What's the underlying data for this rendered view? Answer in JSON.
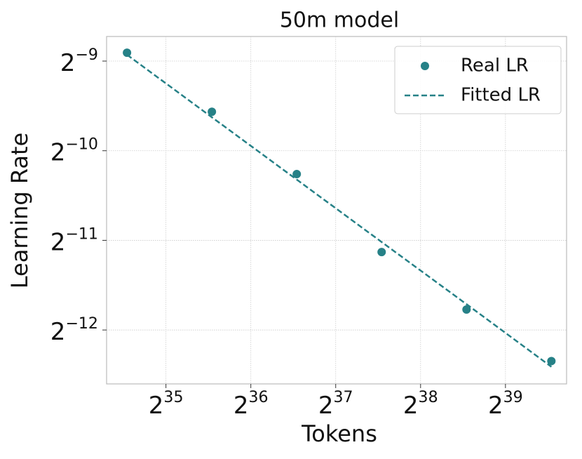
{
  "chart_data": {
    "type": "scatter",
    "title": "50m model",
    "x_label": "Tokens",
    "y_label": "Learning Rate",
    "xscale": "log2",
    "yscale": "log2",
    "x": [
      25000000000,
      50000000000,
      100000000000,
      200000000000,
      400000000000,
      800000000000
    ],
    "series": [
      {
        "name": "Real LR",
        "color": "#268187",
        "style": "marker",
        "values": [
          0.002084,
          0.00132,
          0.000815,
          0.000446,
          0.000286,
          0.000192
        ]
      },
      {
        "name": "Fitted LR",
        "color": "#268187",
        "style": "dashed-line",
        "values": [
          0.002051,
          0.001265,
          0.000781,
          0.000482,
          0.000298,
          0.0001837
        ]
      }
    ],
    "xlim": [
      21160000000,
      905600000000
    ],
    "ylim": [
      0.0001609,
      0.002362
    ],
    "xticks": [
      {
        "value": 34359738368,
        "label": "2^35"
      },
      {
        "value": 68719476736,
        "label": "2^36"
      },
      {
        "value": 137438953472,
        "label": "2^37"
      },
      {
        "value": 274877906944,
        "label": "2^38"
      },
      {
        "value": 549755813888,
        "label": "2^39"
      }
    ],
    "yticks": [
      {
        "value": 0.001953125,
        "label": "2^−9"
      },
      {
        "value": 0.0009765625,
        "label": "2^−10"
      },
      {
        "value": 0.00048828125,
        "label": "2^−11"
      },
      {
        "value": 0.000244140625,
        "label": "2^−12"
      }
    ],
    "grid": true,
    "legend": "upper right"
  }
}
